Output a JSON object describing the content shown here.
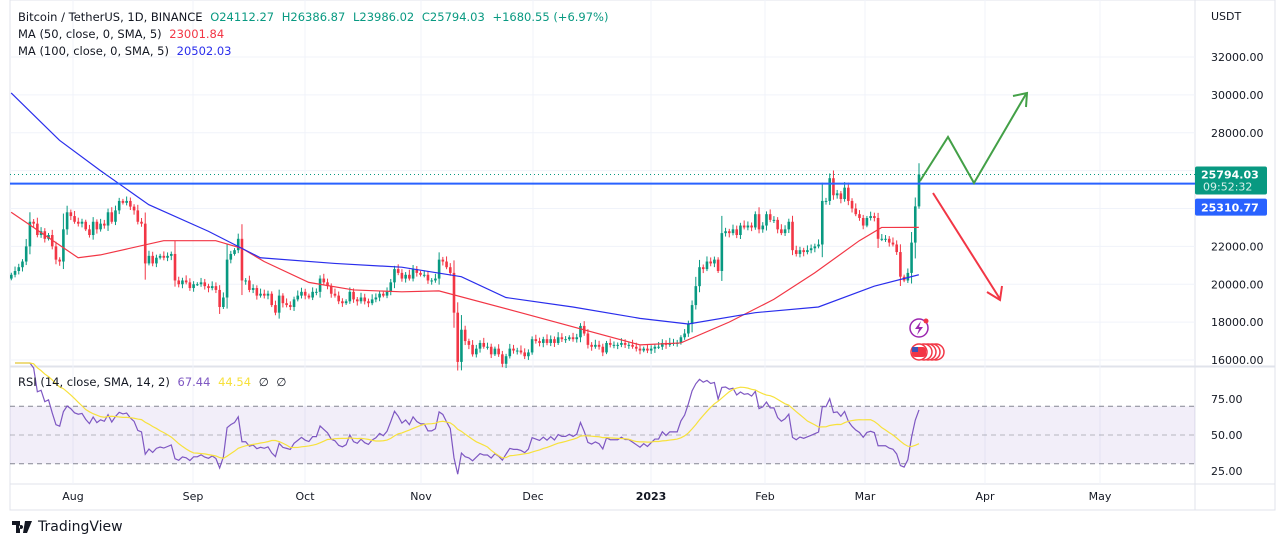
{
  "header": {
    "symbol": "Bitcoin / TetherUS, 1D, BINANCE",
    "open": "O24112.27",
    "high": "H26386.87",
    "low": "L23986.02",
    "close": "C25794.03",
    "change": "+1680.55 (+6.97%)",
    "ma50_label": "MA (50, close, 0, SMA, 5)",
    "ma50_value": "23001.84",
    "ma100_label": "MA (100, close, 0, SMA, 5)",
    "ma100_value": "20502.03",
    "rsi_label": "RSI (14, close, SMA, 14, 2)",
    "rsi_value": "67.44",
    "rsi_ma_value": "44.54",
    "rsi_extra1": "∅",
    "rsi_extra2": "∅"
  },
  "branding": {
    "name": "TradingView"
  },
  "colors": {
    "up": "#089981",
    "down": "#f23645",
    "ma50": "#f23645",
    "ma100": "#2a2eec",
    "level": "#2962ff",
    "rsi": "#7e57c2",
    "rsi_ma": "#f7e13c",
    "arrow_up": "#43a047",
    "arrow_down": "#f23645"
  },
  "chart_data": {
    "type": "candlestick",
    "currency": "USDT",
    "interval": "1D",
    "last_candle": {
      "open": 24112.27,
      "high": 26386.87,
      "low": 23986.02,
      "close": 25794.03
    },
    "last_price_label": "25794.03",
    "countdown": "09:52:32",
    "horizontal_level": 25310.77,
    "horizontal_level_label": "25310.77",
    "ylim": [
      16000,
      32000
    ],
    "y_ticks": [
      "32000.00",
      "30000.00",
      "28000.00",
      "26000.00",
      "24000.00",
      "22000.00",
      "20000.00",
      "18000.00",
      "16000.00"
    ],
    "x_ticks": [
      "Aug",
      "Sep",
      "Oct",
      "Nov",
      "Dec",
      "2023",
      "Feb",
      "Mar",
      "Apr",
      "May"
    ],
    "closes": [
      20500,
      20700,
      20900,
      21200,
      22000,
      23300,
      23200,
      22600,
      22800,
      22400,
      22600,
      22000,
      21300,
      21200,
      22900,
      23800,
      23600,
      23300,
      23200,
      23300,
      22900,
      22600,
      23300,
      22900,
      23200,
      23100,
      23800,
      23300,
      23900,
      24400,
      24300,
      24400,
      24100,
      23900,
      23300,
      23200,
      21100,
      21500,
      21100,
      21400,
      21500,
      21400,
      21500,
      21600,
      20200,
      20000,
      20200,
      20100,
      19800,
      20000,
      20000,
      20100,
      19900,
      19800,
      19900,
      19700,
      18800,
      19300,
      21300,
      21600,
      21800,
      22400,
      20200,
      20200,
      19700,
      19800,
      19400,
      19500,
      19400,
      19500,
      18900,
      18500,
      19400,
      19000,
      18900,
      18800,
      19200,
      19400,
      19600,
      19400,
      19300,
      19600,
      19600,
      20300,
      20100,
      19900,
      19500,
      19400,
      19100,
      19000,
      19100,
      19600,
      19200,
      19100,
      19300,
      19100,
      19000,
      19200,
      19300,
      19500,
      19400,
      19600,
      20100,
      20800,
      20600,
      20300,
      20500,
      20300,
      20800,
      20600,
      20500,
      20500,
      20200,
      20200,
      20300,
      21300,
      21200,
      20900,
      20600,
      18500,
      15900,
      17600,
      17000,
      16800,
      16300,
      16600,
      16900,
      16700,
      16700,
      16300,
      16600,
      16300,
      15800,
      16200,
      16600,
      16500,
      16500,
      16400,
      16200,
      16400,
      17100,
      17000,
      16900,
      17100,
      16900,
      17100,
      16900,
      17200,
      17100,
      17100,
      17200,
      17100,
      17200,
      17800,
      17400,
      16800,
      16700,
      16800,
      16700,
      16400,
      16900,
      16800,
      16800,
      16800,
      16900,
      16800,
      16800,
      16700,
      16600,
      16500,
      16600,
      16500,
      16600,
      16700,
      16700,
      16900,
      16800,
      16900,
      16900,
      16900,
      17200,
      17400,
      17900,
      18900,
      19900,
      20900,
      20800,
      21200,
      21100,
      21300,
      20700,
      22700,
      22800,
      22700,
      22900,
      22600,
      23100,
      23000,
      23100,
      23000,
      23700,
      22900,
      23100,
      23700,
      23400,
      23400,
      22900,
      22700,
      22900,
      23300,
      21800,
      21600,
      21800,
      21700,
      21800,
      21900,
      22000,
      22100,
      24400,
      24400,
      25600,
      24700,
      24800,
      24500,
      25100,
      24400,
      24000,
      23700,
      23500,
      23100,
      23500,
      23600,
      23500,
      22400,
      22400,
      22400,
      22200,
      22100,
      21700,
      20400,
      20200,
      20600,
      22200,
      24112.27,
      25794.03
    ],
    "ma50": [
      [
        "2022-07-13",
        23800
      ],
      [
        "2022-07-31",
        21400
      ],
      [
        "2022-08-06",
        21550
      ],
      [
        "2022-08-23",
        22300
      ],
      [
        "2022-09-06",
        22300
      ],
      [
        "2022-09-13",
        21900
      ],
      [
        "2022-09-19",
        21200
      ],
      [
        "2022-10-01",
        20100
      ],
      [
        "2022-10-13",
        19700
      ],
      [
        "2022-10-26",
        19600
      ],
      [
        "2022-11-05",
        19650
      ],
      [
        "2022-11-27",
        18500
      ],
      [
        "2022-12-29",
        16800
      ],
      [
        "2023-01-09",
        16900
      ],
      [
        "2023-01-22",
        18000
      ],
      [
        "2023-02-03",
        19200
      ],
      [
        "2023-02-14",
        20600
      ],
      [
        "2023-02-26",
        22300
      ],
      [
        "2023-03-04",
        23000
      ],
      [
        "2023-03-14",
        23002
      ]
    ],
    "ma100": [
      [
        "2022-07-13",
        30100
      ],
      [
        "2022-07-26",
        27600
      ],
      [
        "2022-08-06",
        26000
      ],
      [
        "2022-08-19",
        24200
      ],
      [
        "2022-09-04",
        22800
      ],
      [
        "2022-09-18",
        21400
      ],
      [
        "2022-10-08",
        21100
      ],
      [
        "2022-10-26",
        20900
      ],
      [
        "2022-11-11",
        20400
      ],
      [
        "2022-11-23",
        19300
      ],
      [
        "2022-12-11",
        18800
      ],
      [
        "2022-12-29",
        18200
      ],
      [
        "2023-01-11",
        17900
      ],
      [
        "2023-01-29",
        18500
      ],
      [
        "2023-02-15",
        18800
      ],
      [
        "2023-03-02",
        19900
      ],
      [
        "2023-03-14",
        20502
      ]
    ],
    "rsi": {
      "period": 14,
      "ylim": [
        0,
        100
      ],
      "upper_band": 70,
      "lower_band": 30,
      "y_ticks": [
        "75.00",
        "50.00",
        "25.00"
      ]
    }
  }
}
